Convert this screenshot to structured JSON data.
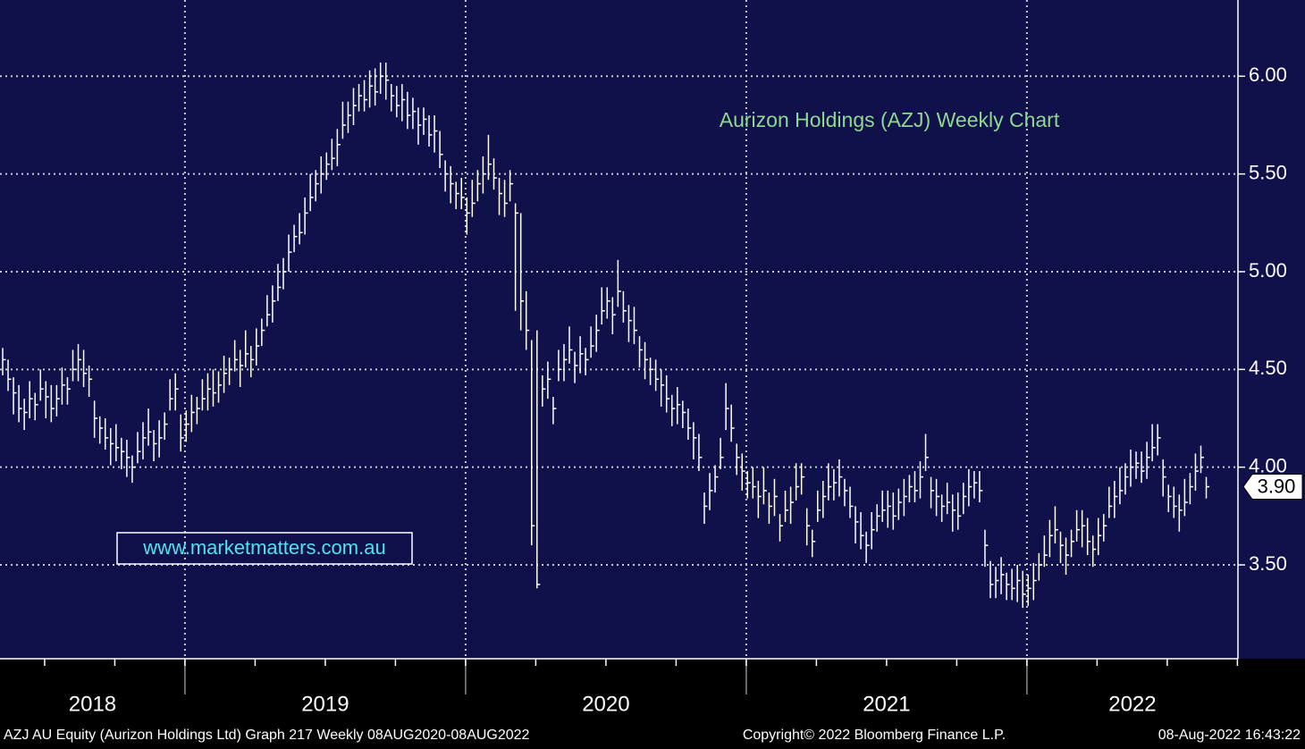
{
  "chart_data": {
    "type": "ohlc",
    "title": "Aurizon Holdings (AZJ) Weekly Chart",
    "watermark": "www.marketmatters.com.au",
    "footer_left": "AZJ AU Equity (Aurizon Holdings Ltd) Graph 217  Weekly 08AUG2020-08AUG2022",
    "footer_center": "Copyright© 2022 Bloomberg Finance L.P.",
    "footer_right": "08-Aug-2022 16:43:22",
    "color": "#ffffff",
    "grid": true,
    "xlim": [
      2018.341,
      2022.752
    ],
    "xticks": [
      2019,
      2020,
      2021,
      2022
    ],
    "year_labels": [
      "2018",
      "2019",
      "2020",
      "2021",
      "2022"
    ],
    "ylim": [
      3.02,
      6.39
    ],
    "yticks": [
      {
        "value": 6,
        "label": "6.00"
      },
      {
        "value": 5.5,
        "label": "5.50"
      },
      {
        "value": 5,
        "label": "5.00"
      },
      {
        "value": 4.5,
        "label": "4.50"
      },
      {
        "value": 4,
        "label": "4.00"
      },
      {
        "value": 3.5,
        "label": "3.50"
      }
    ],
    "last": {
      "value": 3.9,
      "label": "3.90"
    },
    "high": [
      4.61,
      4.55,
      4.46,
      4.42,
      4.35,
      4.44,
      4.38,
      4.5,
      4.44,
      4.42,
      4.42,
      4.51,
      4.46,
      4.6,
      4.63,
      4.6,
      4.52,
      4.34,
      4.26,
      4.25,
      4.2,
      4.22,
      4.15,
      4.14,
      4.06,
      4.18,
      4.23,
      4.3,
      4.19,
      4.24,
      4.28,
      4.45,
      4.48,
      4.27,
      4.29,
      4.37,
      4.36,
      4.45,
      4.48,
      4.5,
      4.49,
      4.57,
      4.56,
      4.65,
      4.6,
      4.7,
      4.62,
      4.71,
      4.76,
      4.88,
      4.93,
      5.04,
      5.07,
      5.19,
      5.24,
      5.3,
      5.38,
      5.5,
      5.52,
      5.59,
      5.61,
      5.68,
      5.73,
      5.87,
      5.87,
      5.94,
      5.96,
      5.98,
      6.03,
      6.04,
      6.07,
      6.07,
      5.96,
      5.95,
      5.96,
      5.92,
      5.89,
      5.84,
      5.84,
      5.8,
      5.8,
      5.72,
      5.57,
      5.54,
      5.46,
      5.48,
      5.38,
      5.47,
      5.52,
      5.59,
      5.7,
      5.58,
      5.48,
      5.47,
      5.52,
      5.35,
      5.3,
      4.9,
      4.65,
      4.7,
      4.47,
      4.54,
      4.36,
      4.6,
      4.63,
      4.72,
      4.59,
      4.67,
      4.61,
      4.72,
      4.78,
      4.92,
      4.92,
      4.87,
      5.06,
      4.9,
      4.83,
      4.82,
      4.67,
      4.64,
      4.56,
      4.55,
      4.5,
      4.47,
      4.37,
      4.41,
      4.34,
      4.3,
      4.23,
      4.17,
      3.87,
      3.97,
      4.01,
      4.15,
      4.43,
      4.32,
      4.12,
      4.07,
      3.98,
      4.0,
      3.93,
      4.0,
      3.87,
      3.94,
      3.76,
      3.88,
      3.9,
      4.02,
      4.02,
      3.79,
      3.68,
      3.88,
      3.93,
      4.02,
      3.99,
      4.04,
      3.94,
      3.9,
      3.8,
      3.77,
      3.67,
      3.77,
      3.81,
      3.88,
      3.88,
      3.87,
      3.89,
      3.94,
      3.96,
      3.98,
      4.03,
      4.17,
      3.95,
      3.94,
      3.86,
      3.92,
      3.86,
      3.87,
      3.92,
      3.99,
      3.98,
      3.98,
      3.68,
      3.52,
      3.49,
      3.54,
      3.46,
      3.48,
      3.5,
      3.47,
      3.45,
      3.51,
      3.56,
      3.65,
      3.73,
      3.8,
      3.67,
      3.64,
      3.68,
      3.78,
      3.78,
      3.74,
      3.65,
      3.74,
      3.76,
      3.9,
      3.93,
      4.0,
      4.02,
      4.09,
      4.08,
      4.08,
      4.13,
      4.22,
      4.22,
      4.04,
      3.91,
      3.9,
      3.86,
      3.94,
      3.97,
      4.07,
      4.11,
      3.95
    ],
    "low": [
      4.47,
      4.39,
      4.27,
      4.23,
      4.19,
      4.25,
      4.24,
      4.34,
      4.25,
      4.23,
      4.26,
      4.32,
      4.32,
      4.44,
      4.44,
      4.41,
      4.36,
      4.15,
      4.12,
      4.09,
      4.01,
      4.03,
      3.99,
      3.95,
      3.92,
      4.02,
      4.04,
      4.11,
      4.03,
      4.05,
      4.14,
      4.29,
      4.29,
      4.08,
      4.13,
      4.18,
      4.22,
      4.29,
      4.29,
      4.31,
      4.33,
      4.38,
      4.42,
      4.49,
      4.41,
      4.51,
      4.46,
      4.52,
      4.62,
      4.72,
      4.74,
      4.85,
      4.91,
      5.0,
      5.1,
      5.14,
      5.19,
      5.31,
      5.36,
      5.4,
      5.47,
      5.52,
      5.54,
      5.68,
      5.71,
      5.75,
      5.82,
      5.82,
      5.84,
      5.85,
      5.91,
      5.88,
      5.82,
      5.79,
      5.77,
      5.73,
      5.73,
      5.65,
      5.7,
      5.64,
      5.61,
      5.53,
      5.41,
      5.35,
      5.32,
      5.32,
      5.19,
      5.28,
      5.36,
      5.4,
      5.47,
      5.42,
      5.29,
      5.28,
      5.36,
      4.8,
      4.7,
      4.6,
      3.6,
      3.38,
      4.31,
      4.35,
      4.22,
      4.44,
      4.44,
      4.53,
      4.43,
      4.48,
      4.47,
      4.56,
      4.59,
      4.73,
      4.76,
      4.68,
      4.82,
      4.74,
      4.64,
      4.63,
      4.51,
      4.45,
      4.42,
      4.39,
      4.31,
      4.28,
      4.21,
      4.22,
      4.2,
      4.14,
      4.04,
      3.98,
      3.71,
      3.78,
      3.87,
      3.99,
      4.19,
      4.13,
      3.96,
      3.88,
      3.84,
      3.84,
      3.74,
      3.81,
      3.71,
      3.75,
      3.62,
      3.72,
      3.71,
      3.83,
      3.86,
      3.6,
      3.54,
      3.72,
      3.74,
      3.83,
      3.83,
      3.85,
      3.8,
      3.74,
      3.61,
      3.58,
      3.51,
      3.58,
      3.67,
      3.72,
      3.69,
      3.68,
      3.73,
      3.75,
      3.82,
      3.82,
      3.84,
      3.98,
      3.79,
      3.75,
      3.72,
      3.76,
      3.67,
      3.68,
      3.76,
      3.8,
      3.84,
      3.82,
      3.49,
      3.33,
      3.33,
      3.35,
      3.32,
      3.32,
      3.31,
      3.28,
      3.29,
      3.32,
      3.42,
      3.49,
      3.54,
      3.61,
      3.51,
      3.45,
      3.54,
      3.62,
      3.59,
      3.55,
      3.49,
      3.55,
      3.62,
      3.74,
      3.74,
      3.81,
      3.86,
      3.9,
      3.94,
      3.92,
      3.94,
      4.03,
      4.06,
      3.85,
      3.77,
      3.74,
      3.67,
      3.75,
      3.81,
      3.88,
      3.97,
      3.84
    ],
    "close": [
      4.55,
      4.45,
      4.38,
      4.3,
      4.28,
      4.35,
      4.32,
      4.4,
      4.36,
      4.3,
      4.35,
      4.42,
      4.4,
      4.5,
      4.55,
      4.48,
      4.45,
      4.25,
      4.2,
      4.15,
      4.12,
      4.1,
      4.08,
      4.05,
      4.0,
      4.08,
      4.15,
      4.18,
      4.12,
      4.15,
      4.22,
      4.35,
      4.4,
      4.15,
      4.22,
      4.28,
      4.3,
      4.35,
      4.4,
      4.38,
      4.42,
      4.48,
      4.5,
      4.55,
      4.52,
      4.58,
      4.55,
      4.62,
      4.7,
      4.78,
      4.85,
      4.92,
      5.0,
      5.1,
      5.18,
      5.2,
      5.3,
      5.38,
      5.45,
      5.5,
      5.55,
      5.58,
      5.65,
      5.75,
      5.8,
      5.85,
      5.9,
      5.88,
      5.95,
      5.92,
      6.0,
      5.98,
      5.9,
      5.85,
      5.88,
      5.8,
      5.82,
      5.75,
      5.78,
      5.7,
      5.72,
      5.6,
      5.5,
      5.45,
      5.4,
      5.38,
      5.3,
      5.35,
      5.45,
      5.5,
      5.55,
      5.48,
      5.4,
      5.35,
      5.45,
      5.3,
      4.85,
      4.7,
      3.7,
      3.4,
      4.4,
      4.45,
      4.3,
      4.5,
      4.55,
      4.6,
      4.52,
      4.58,
      4.55,
      4.62,
      4.7,
      4.8,
      4.85,
      4.78,
      4.9,
      4.8,
      4.75,
      4.7,
      4.6,
      4.55,
      4.5,
      4.45,
      4.42,
      4.35,
      4.3,
      4.32,
      4.28,
      4.2,
      4.15,
      4.05,
      3.8,
      3.88,
      3.95,
      4.05,
      4.3,
      4.2,
      4.05,
      3.98,
      3.92,
      3.9,
      3.85,
      3.88,
      3.8,
      3.85,
      3.7,
      3.78,
      3.82,
      3.9,
      3.95,
      3.7,
      3.62,
      3.78,
      3.85,
      3.9,
      3.92,
      3.95,
      3.88,
      3.8,
      3.72,
      3.65,
      3.6,
      3.68,
      3.75,
      3.78,
      3.8,
      3.75,
      3.82,
      3.85,
      3.9,
      3.88,
      3.95,
      4.05,
      3.88,
      3.85,
      3.8,
      3.82,
      3.78,
      3.75,
      3.85,
      3.9,
      3.92,
      3.88,
      3.6,
      3.4,
      3.42,
      3.45,
      3.4,
      3.38,
      3.42,
      3.35,
      3.38,
      3.42,
      3.5,
      3.55,
      3.65,
      3.68,
      3.6,
      3.55,
      3.62,
      3.68,
      3.7,
      3.62,
      3.58,
      3.65,
      3.7,
      3.8,
      3.85,
      3.88,
      3.95,
      4.0,
      4.02,
      3.98,
      4.05,
      4.1,
      4.15,
      3.95,
      3.85,
      3.8,
      3.78,
      3.82,
      3.9,
      3.98,
      4.05,
      3.9
    ]
  }
}
